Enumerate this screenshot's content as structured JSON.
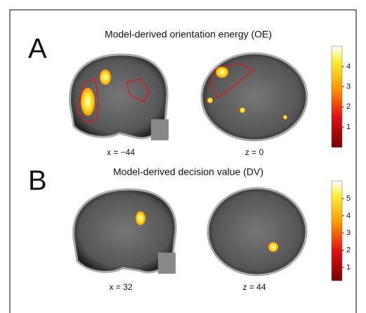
{
  "panels": [
    {
      "label": "A",
      "title": "Model-derived orientation energy (OE)",
      "images": [
        {
          "caption": "x = −44"
        },
        {
          "caption": "z = 0"
        }
      ],
      "colorbar_ticks": [
        1,
        2,
        3,
        4
      ]
    },
    {
      "label": "B",
      "title": "Model-derived decision value (DV)",
      "images": [
        {
          "caption": "x = 32"
        },
        {
          "caption": "z = 44"
        }
      ],
      "colorbar_ticks": [
        1,
        2,
        3,
        4,
        5
      ]
    }
  ]
}
